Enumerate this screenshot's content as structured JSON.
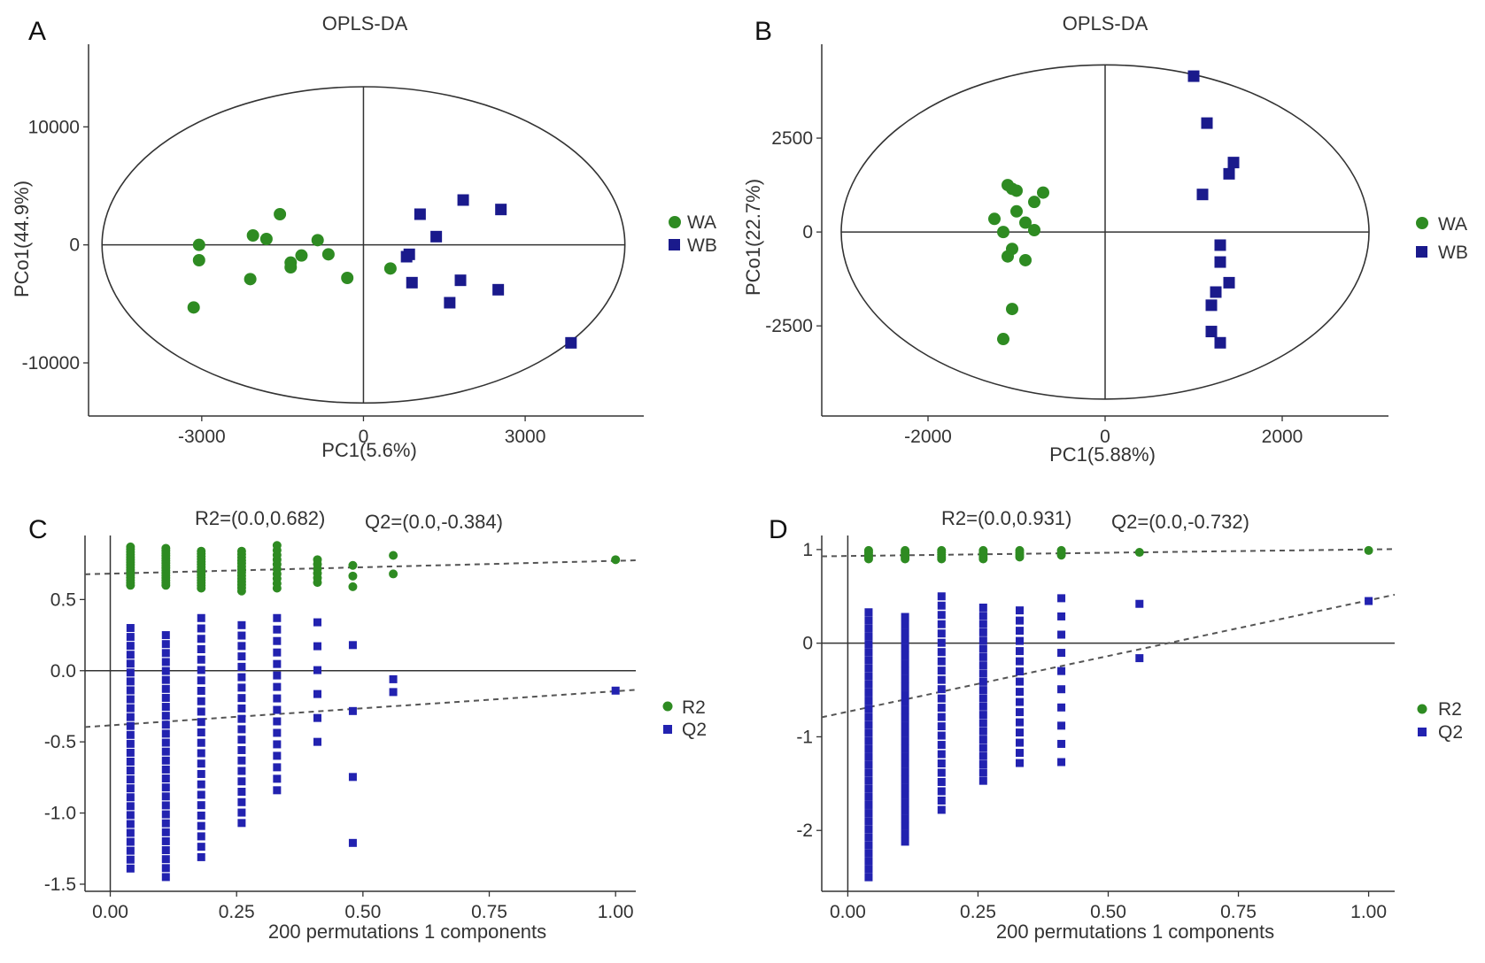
{
  "chart_data": [
    {
      "panel": "A",
      "type": "scatter",
      "title": "OPLS-DA",
      "xlabel": "PC1(5.6%)",
      "ylabel": "PCo1(44.9%)",
      "xlim": [
        -5100,
        5200
      ],
      "ylim": [
        -14500,
        17000
      ],
      "xticks": [
        -3000,
        0,
        3000
      ],
      "xtick_labels": [
        "-3000",
        "0",
        "3000"
      ],
      "yticks": [
        10000,
        0,
        -10000
      ],
      "ytick_labels": [
        "10000",
        "0",
        "-10000"
      ],
      "ellipse": {
        "cx": 0,
        "cy": 0,
        "rx": 4850,
        "ry": 13400
      },
      "legend": [
        "WA",
        "WB"
      ],
      "series": [
        {
          "name": "WA",
          "marker": "circle",
          "color": "#2e8b22",
          "points": [
            [
              -3050,
              0
            ],
            [
              -3050,
              -1300
            ],
            [
              -3150,
              -5300
            ],
            [
              -2050,
              800
            ],
            [
              -1550,
              2600
            ],
            [
              -1800,
              500
            ],
            [
              -1350,
              -1500
            ],
            [
              -1350,
              -1900
            ],
            [
              -1150,
              -900
            ],
            [
              -850,
              400
            ],
            [
              -650,
              -800
            ],
            [
              -2100,
              -2900
            ],
            [
              -300,
              -2800
            ],
            [
              500,
              -2000
            ]
          ]
        },
        {
          "name": "WB",
          "marker": "square",
          "color": "#1a1a8c",
          "points": [
            [
              850,
              -800
            ],
            [
              800,
              -1000
            ],
            [
              1050,
              2600
            ],
            [
              1350,
              700
            ],
            [
              1850,
              3800
            ],
            [
              2550,
              3000
            ],
            [
              900,
              -3200
            ],
            [
              1800,
              -3000
            ],
            [
              1600,
              -4900
            ],
            [
              2500,
              -3800
            ],
            [
              3850,
              -8300
            ]
          ]
        }
      ]
    },
    {
      "panel": "B",
      "type": "scatter",
      "title": "OPLS-DA",
      "xlabel": "PC1(5.88%)",
      "ylabel": "PCo1(22.7%)",
      "xlim": [
        -3200,
        3200
      ],
      "ylim": [
        -4900,
        5000
      ],
      "xticks": [
        -2000,
        0,
        2000
      ],
      "xtick_labels": [
        "-2000",
        "0",
        "2000"
      ],
      "yticks": [
        2500,
        0,
        -2500
      ],
      "ytick_labels": [
        "2500",
        "0",
        "-2500"
      ],
      "ellipse": {
        "cx": 0,
        "cy": 0,
        "rx": 2980,
        "ry": 4450
      },
      "legend": [
        "WA",
        "WB"
      ],
      "series": [
        {
          "name": "WA",
          "marker": "circle",
          "color": "#2e8b22",
          "points": [
            [
              -1100,
              1250
            ],
            [
              -1050,
              1150
            ],
            [
              -700,
              1050
            ],
            [
              -1000,
              1100
            ],
            [
              -800,
              800
            ],
            [
              -1000,
              550
            ],
            [
              -1250,
              350
            ],
            [
              -900,
              250
            ],
            [
              -1150,
              0
            ],
            [
              -800,
              50
            ],
            [
              -1050,
              -450
            ],
            [
              -1100,
              -650
            ],
            [
              -900,
              -750
            ],
            [
              -1050,
              -2050
            ],
            [
              -1150,
              -2850
            ]
          ]
        },
        {
          "name": "WB",
          "marker": "square",
          "color": "#1a1a8c",
          "points": [
            [
              1000,
              4150
            ],
            [
              1150,
              2900
            ],
            [
              1450,
              1850
            ],
            [
              1400,
              1550
            ],
            [
              1100,
              1000
            ],
            [
              1300,
              -350
            ],
            [
              1300,
              -800
            ],
            [
              1400,
              -1350
            ],
            [
              1250,
              -1600
            ],
            [
              1200,
              -1950
            ],
            [
              1200,
              -2650
            ],
            [
              1300,
              -2950
            ]
          ]
        }
      ]
    },
    {
      "panel": "C",
      "type": "scatter",
      "title": "",
      "xlabel": "200 permutations 1 components",
      "ylabel": "",
      "xlim": [
        -0.05,
        1.04
      ],
      "ylim": [
        -1.55,
        0.95
      ],
      "xticks": [
        0.0,
        0.25,
        0.5,
        0.75,
        1.0
      ],
      "xtick_labels": [
        "0.00",
        "0.25",
        "0.50",
        "0.75",
        "1.00"
      ],
      "yticks": [
        0.5,
        0.0,
        -0.5,
        -1.0,
        -1.5
      ],
      "ytick_labels": [
        "0.5",
        "0.0",
        "-0.5",
        "-1.0",
        "-1.5"
      ],
      "r2_annotation": "R2=(0.0,0.682)",
      "q2_annotation": "Q2=(0.0,-0.384)",
      "legend": [
        "R2",
        "Q2"
      ],
      "r2_line": {
        "intercept": 0.682,
        "slope": 0.09
      },
      "q2_line": {
        "intercept": -0.384,
        "slope": 0.24
      },
      "r2_groups": [
        {
          "x": 0.04,
          "ymin": 0.6,
          "ymax": 0.87,
          "n": 16
        },
        {
          "x": 0.11,
          "ymin": 0.6,
          "ymax": 0.86,
          "n": 16
        },
        {
          "x": 0.18,
          "ymin": 0.58,
          "ymax": 0.84,
          "n": 15
        },
        {
          "x": 0.26,
          "ymin": 0.56,
          "ymax": 0.84,
          "n": 14
        },
        {
          "x": 0.33,
          "ymin": 0.58,
          "ymax": 0.88,
          "n": 10
        },
        {
          "x": 0.41,
          "ymin": 0.62,
          "ymax": 0.78,
          "n": 6
        },
        {
          "x": 0.48,
          "ymin": 0.59,
          "ymax": 0.74,
          "n": 3
        },
        {
          "x": 0.56,
          "ymin": 0.68,
          "ymax": 0.81,
          "n": 2
        },
        {
          "x": 1.0,
          "ymin": 0.78,
          "ymax": 0.78,
          "n": 1
        }
      ],
      "q2_groups": [
        {
          "x": 0.04,
          "ymin": -1.39,
          "ymax": 0.3,
          "n": 28
        },
        {
          "x": 0.11,
          "ymin": -1.45,
          "ymax": 0.25,
          "n": 28
        },
        {
          "x": 0.18,
          "ymin": -1.31,
          "ymax": 0.37,
          "n": 24
        },
        {
          "x": 0.26,
          "ymin": -1.07,
          "ymax": 0.32,
          "n": 20
        },
        {
          "x": 0.33,
          "ymin": -0.84,
          "ymax": 0.37,
          "n": 16
        },
        {
          "x": 0.41,
          "ymin": -0.5,
          "ymax": 0.34,
          "n": 6
        },
        {
          "x": 0.48,
          "ymin": -1.21,
          "ymax": 0.18,
          "n": 4
        },
        {
          "x": 0.56,
          "ymin": -0.15,
          "ymax": -0.06,
          "n": 2
        },
        {
          "x": 1.0,
          "ymin": -0.14,
          "ymax": -0.14,
          "n": 1
        }
      ]
    },
    {
      "panel": "D",
      "type": "scatter",
      "title": "",
      "xlabel": "200 permutations 1 components",
      "ylabel": "",
      "xlim": [
        -0.05,
        1.05
      ],
      "ylim": [
        -2.65,
        1.15
      ],
      "xticks": [
        0.0,
        0.25,
        0.5,
        0.75,
        1.0
      ],
      "xtick_labels": [
        "0.00",
        "0.25",
        "0.50",
        "0.75",
        "1.00"
      ],
      "yticks": [
        1,
        0,
        -1,
        -2
      ],
      "ytick_labels": [
        "1",
        "0",
        "-1",
        "-2"
      ],
      "r2_annotation": "R2=(0.0,0.931)",
      "q2_annotation": "Q2=(0.0,-0.732)",
      "legend": [
        "R2",
        "Q2"
      ],
      "r2_line": {
        "intercept": 0.931,
        "slope": 0.07
      },
      "q2_line": {
        "intercept": -0.732,
        "slope": 1.19
      },
      "r2_groups": [
        {
          "x": 0.04,
          "ymin": 0.9,
          "ymax": 0.99,
          "n": 5
        },
        {
          "x": 0.11,
          "ymin": 0.9,
          "ymax": 0.99,
          "n": 5
        },
        {
          "x": 0.18,
          "ymin": 0.9,
          "ymax": 0.99,
          "n": 5
        },
        {
          "x": 0.26,
          "ymin": 0.9,
          "ymax": 0.99,
          "n": 5
        },
        {
          "x": 0.33,
          "ymin": 0.92,
          "ymax": 0.99,
          "n": 4
        },
        {
          "x": 0.41,
          "ymin": 0.94,
          "ymax": 0.99,
          "n": 3
        },
        {
          "x": 0.56,
          "ymin": 0.97,
          "ymax": 0.97,
          "n": 1
        },
        {
          "x": 1.0,
          "ymin": 0.99,
          "ymax": 0.99,
          "n": 1
        }
      ],
      "q2_groups": [
        {
          "x": 0.04,
          "ymin": -2.5,
          "ymax": 0.33,
          "n": 34
        },
        {
          "x": 0.11,
          "ymin": -2.12,
          "ymax": 0.28,
          "n": 30
        },
        {
          "x": 0.18,
          "ymin": -1.78,
          "ymax": 0.5,
          "n": 24
        },
        {
          "x": 0.26,
          "ymin": -1.47,
          "ymax": 0.38,
          "n": 22
        },
        {
          "x": 0.33,
          "ymin": -1.28,
          "ymax": 0.35,
          "n": 16
        },
        {
          "x": 0.41,
          "ymin": -1.27,
          "ymax": 0.48,
          "n": 10
        },
        {
          "x": 0.56,
          "ymin": -0.16,
          "ymax": 0.42,
          "n": 2
        },
        {
          "x": 1.0,
          "ymin": 0.45,
          "ymax": 0.45,
          "n": 1
        }
      ]
    }
  ],
  "colors": {
    "wa": "#2e8b22",
    "wb": "#1a1a8c",
    "r2": "#2e8b22",
    "q2": "#2222b0"
  }
}
